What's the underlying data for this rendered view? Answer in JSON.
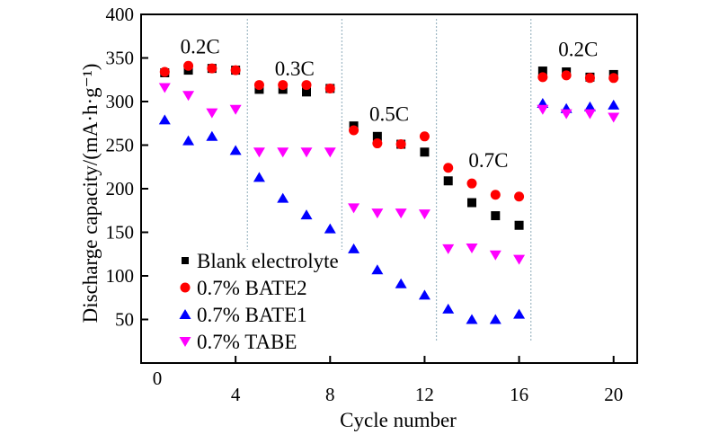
{
  "chart_data": {
    "type": "scatter",
    "title": "",
    "xlabel": "Cycle number",
    "ylabel": "Discharge capacity/(mA·h·g⁻¹)",
    "xlim": [
      0,
      21
    ],
    "ylim": [
      0,
      400
    ],
    "xticks": [
      4,
      8,
      12,
      16,
      20
    ],
    "xtick_labels": [
      "4",
      "8",
      "12",
      "16",
      "20"
    ],
    "yticks": [
      50,
      100,
      150,
      200,
      250,
      300,
      350,
      400
    ],
    "ytick_labels": [
      "50",
      "100",
      "150",
      "200",
      "250",
      "300",
      "350",
      "400"
    ],
    "origin_label": "0",
    "grid": false,
    "legend_position": "bottom-left",
    "x": [
      1,
      2,
      3,
      4,
      5,
      6,
      7,
      8,
      9,
      10,
      11,
      12,
      13,
      14,
      15,
      16,
      17,
      18,
      19,
      20
    ],
    "series": [
      {
        "name": "Blank electrolyte",
        "marker": "square",
        "color": "#000000",
        "values": [
          333,
          336,
          338,
          336,
          314,
          314,
          311,
          315,
          272,
          260,
          251,
          242,
          209,
          184,
          169,
          158,
          335,
          334,
          328,
          331
        ]
      },
      {
        "name": "0.7% BATE2",
        "marker": "circle",
        "color": "#ff0000",
        "values": [
          334,
          341,
          338,
          336,
          319,
          319,
          319,
          315,
          267,
          252,
          251,
          260,
          224,
          206,
          193,
          191,
          328,
          330,
          327,
          327
        ]
      },
      {
        "name": "0.7% BATE1",
        "marker": "triangle-up",
        "color": "#0000ff",
        "values": [
          279,
          255,
          260,
          244,
          213,
          189,
          170,
          154,
          131,
          107,
          91,
          78,
          62,
          50,
          50,
          56,
          298,
          292,
          294,
          296
        ]
      },
      {
        "name": "0.7% TABE",
        "marker": "triangle-down",
        "color": "#ff00ff",
        "values": [
          316,
          307,
          287,
          291,
          242,
          242,
          242,
          242,
          178,
          172,
          172,
          171,
          131,
          132,
          124,
          119,
          291,
          286,
          286,
          282
        ]
      }
    ],
    "rate_separators": [
      4.5,
      8.5,
      12.5,
      16.5
    ],
    "separator_color": "#9fb8c4",
    "annotations": [
      {
        "text": "0.2C",
        "x": 2.5,
        "y": 355
      },
      {
        "text": "0.3C",
        "x": 6.5,
        "y": 330
      },
      {
        "text": "0.5C",
        "x": 10.5,
        "y": 278
      },
      {
        "text": "0.7C",
        "x": 14.7,
        "y": 225
      },
      {
        "text": "0.2C",
        "x": 18.5,
        "y": 352
      }
    ]
  }
}
